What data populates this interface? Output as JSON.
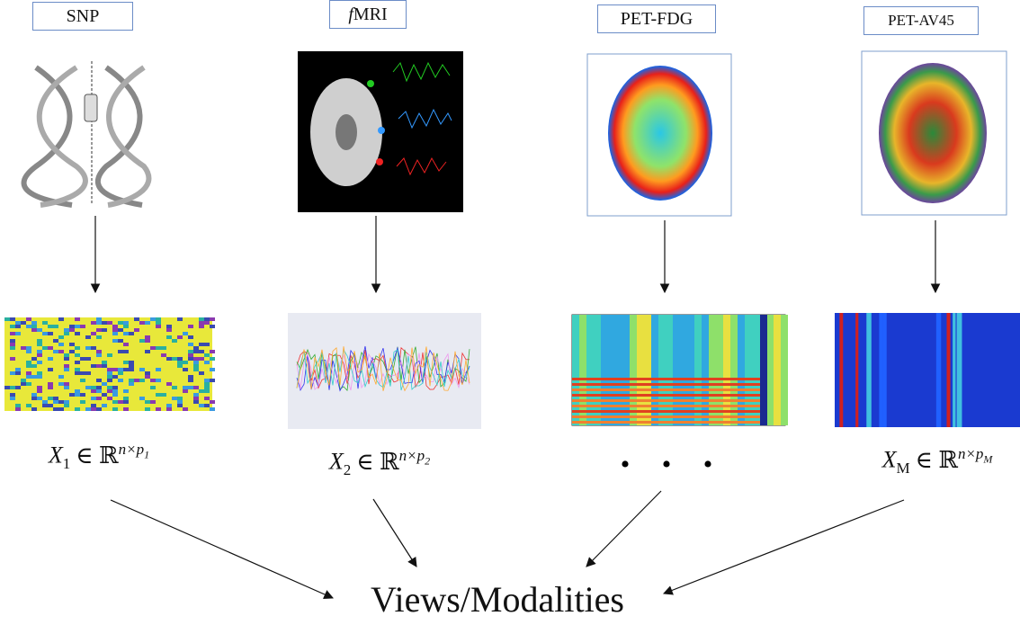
{
  "modalities": [
    {
      "label": "SNP",
      "formula": {
        "var": "X",
        "sub": "1",
        "rel": "∈ ℝ",
        "exp": "n×p",
        "exp_sub": "1"
      }
    },
    {
      "label_prefix": "f",
      "label": "MRI",
      "formula": {
        "var": "X",
        "sub": "2",
        "rel": "∈ ℝ",
        "exp": "n×p",
        "exp_sub": "2"
      }
    },
    {
      "label": "PET-FDG",
      "ellipsis": "• • •"
    },
    {
      "label": "PET-AV45",
      "formula": {
        "var": "X",
        "sub": "M",
        "rel": "∈ ℝ",
        "exp": "n×p",
        "exp_sub": "M"
      }
    }
  ],
  "target": "Views/Modalities"
}
